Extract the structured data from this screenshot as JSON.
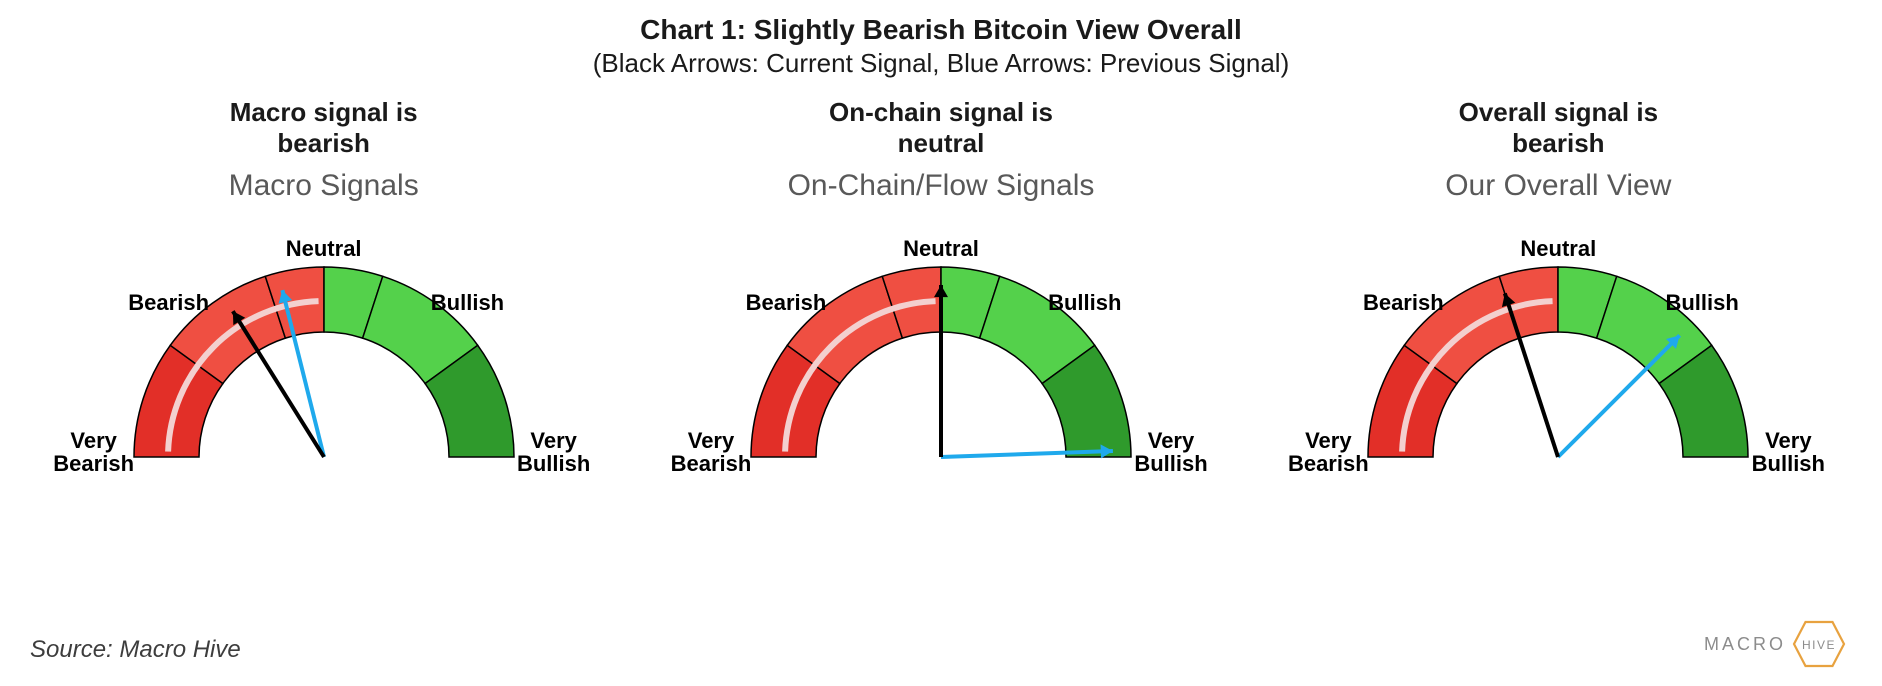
{
  "title": "Chart 1: Slightly Bearish Bitcoin View Overall",
  "subtitle": "(Black Arrows: Current Signal, Blue Arrows: Previous Signal)",
  "title_fontsize": 28,
  "subtitle_fontsize": 26,
  "background_color": "#ffffff",
  "text_color": "#1a1a1a",
  "gauge_spec": {
    "type": "gauge",
    "outer_radius": 190,
    "inner_radius": 125,
    "inner_stripe_radius": 156,
    "inner_stripe_width": 6,
    "inner_stripe_color": "#f3d0cf",
    "segments": [
      {
        "label": "Very\nBearish",
        "angle_start": 180,
        "angle_end": 144,
        "color": "#e22f28"
      },
      {
        "label": "Bearish",
        "angle_start": 144,
        "angle_end": 108,
        "color": "#ef4f42"
      },
      {
        "label": "Neutral_left",
        "angle_start": 108,
        "angle_end": 90,
        "color": "#ef4f42"
      },
      {
        "label": "Neutral_right",
        "angle_start": 90,
        "angle_end": 72,
        "color": "#54d14b"
      },
      {
        "label": "Bullish",
        "angle_start": 72,
        "angle_end": 36,
        "color": "#54d14b"
      },
      {
        "label": "Very\nBullish",
        "angle_start": 36,
        "angle_end": 0,
        "color": "#2f9a2c"
      }
    ],
    "tick_labels": {
      "very_bearish": "Very\nBearish",
      "bearish": "Bearish",
      "neutral": "Neutral",
      "bullish": "Bullish",
      "very_bullish": "Very\nBullish"
    },
    "tick_font_weight": 700,
    "tick_font_size": 22,
    "needle_current_color": "#000000",
    "needle_previous_color": "#1fa9ec",
    "needle_width": 4
  },
  "gauges": [
    {
      "heading": "Macro signal is\nbearish",
      "subheading": "Macro Signals",
      "current_angle_deg": 122,
      "previous_angle_deg": 104
    },
    {
      "heading": "On-chain signal is\nneutral",
      "subheading": "On-Chain/Flow Signals",
      "current_angle_deg": 90,
      "previous_angle_deg": 2
    },
    {
      "heading": "Overall signal is\nbearish",
      "subheading": "Our Overall View",
      "current_angle_deg": 108,
      "previous_angle_deg": 45
    }
  ],
  "source": "Source: Macro Hive",
  "logo": {
    "text": "MACRO",
    "word_in_hex": "HIVE",
    "hex_stroke": "#e8a23f",
    "hex_fill": "none",
    "text_color": "#8c8c8c"
  }
}
